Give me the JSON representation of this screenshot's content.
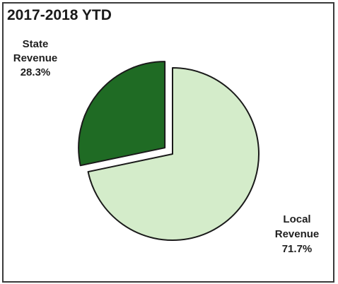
{
  "chart_data": {
    "type": "pie",
    "title": "2017-2018 YTD",
    "slices": [
      {
        "label_lines": [
          "State",
          "Revenue"
        ],
        "percent_label": "28.3%",
        "value": 28.3,
        "color": "#1f6b24",
        "exploded": true
      },
      {
        "label_lines": [
          "Local",
          "Revenue"
        ],
        "percent_label": "71.7%",
        "value": 71.7,
        "color": "#d4ecca",
        "exploded": false
      }
    ],
    "legend": "none"
  }
}
